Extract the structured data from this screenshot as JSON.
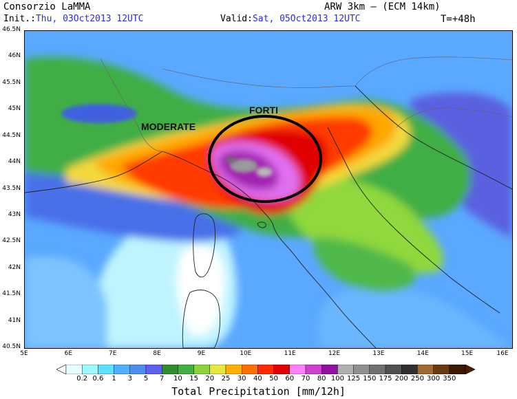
{
  "header": {
    "org": "Consorzio LaMMA",
    "model": "ARW 3km – (ECM 14km)",
    "init_label": "Init.:",
    "init_value": "Thu, 03Oct2013 12UTC",
    "valid_label": "Valid:",
    "valid_value": "Sat, 05Oct2013 12UTC",
    "lead": "T=+48h"
  },
  "map": {
    "lat_labels": [
      "46.5N",
      "46N",
      "45.5N",
      "45N",
      "44.5N",
      "44N",
      "43.5N",
      "43N",
      "42.5N",
      "42N",
      "41.5N",
      "41N",
      "40.5N"
    ],
    "lon_labels": [
      "5E",
      "6E",
      "7E",
      "8E",
      "9E",
      "10E",
      "11E",
      "12E",
      "13E",
      "14E",
      "15E",
      "16E"
    ],
    "annotations": {
      "moderate": "MODERATE",
      "forti": "FORTI"
    }
  },
  "colorbar": {
    "title": "Total Precipitation [mm/12h]",
    "labels": [
      "0.2",
      "0.6",
      "1",
      "3",
      "5",
      "7",
      "10",
      "15",
      "20",
      "25",
      "30",
      "40",
      "50",
      "60",
      "70",
      "80",
      "100",
      "125",
      "150",
      "175",
      "200",
      "250",
      "300",
      "350"
    ],
    "colors": [
      "#e8ffff",
      "#9ef8ff",
      "#5fe0ff",
      "#4fb0ff",
      "#4f8cf0",
      "#6060f0",
      "#2e8e2e",
      "#40b040",
      "#8cd23c",
      "#e8e640",
      "#ffb000",
      "#ff7000",
      "#ff2a00",
      "#e00000",
      "#ff80ff",
      "#d040d0",
      "#9010a0",
      "#b0b0b0",
      "#909090",
      "#707070",
      "#505050",
      "#303030",
      "#a06a30",
      "#6a3a10",
      "#3a1a00"
    ],
    "ends": [
      "#ffffff",
      "#4a2000"
    ]
  }
}
